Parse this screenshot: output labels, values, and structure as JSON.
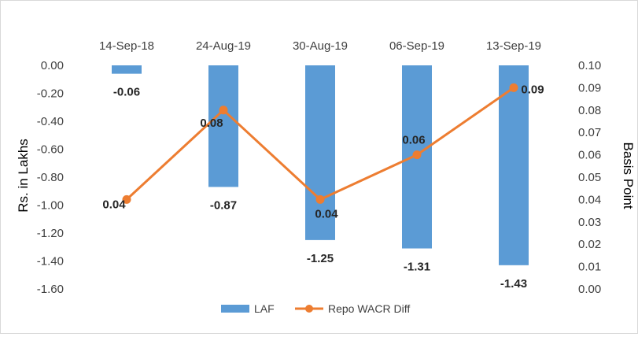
{
  "chart_data": {
    "type": "bar",
    "categories": [
      "14-Sep-18",
      "24-Aug-19",
      "30-Aug-19",
      "06-Sep-19",
      "13-Sep-19"
    ],
    "series": [
      {
        "name": "LAF",
        "type": "bar",
        "axis": "left",
        "color": "#5b9bd5",
        "values": [
          -0.06,
          -0.87,
          -1.25,
          -1.31,
          -1.43
        ],
        "labels": [
          "-0.06",
          "-0.87",
          "-1.25",
          "-1.31",
          "-1.43"
        ]
      },
      {
        "name": "Repo WACR Diff",
        "type": "line",
        "axis": "right",
        "color": "#ed7d31",
        "values": [
          0.04,
          0.08,
          0.04,
          0.06,
          0.09
        ],
        "labels": [
          "0.04",
          "0.08",
          "0.04",
          "0.06",
          "0.09"
        ]
      }
    ],
    "ylabel": "Rs. in Lakhs",
    "y2label": "Basis Point",
    "ylim": [
      -1.6,
      0.0
    ],
    "y2lim": [
      0.0,
      0.1
    ],
    "yticks": [
      "0.00",
      "-0.20",
      "-0.40",
      "-0.60",
      "-0.80",
      "-1.00",
      "-1.20",
      "-1.40",
      "-1.60"
    ],
    "y2ticks": [
      "0.10",
      "0.09",
      "0.08",
      "0.07",
      "0.06",
      "0.05",
      "0.04",
      "0.03",
      "0.02",
      "0.01",
      "0.00"
    ],
    "x_axis_position": "top",
    "grid": false,
    "legend_position": "bottom"
  }
}
